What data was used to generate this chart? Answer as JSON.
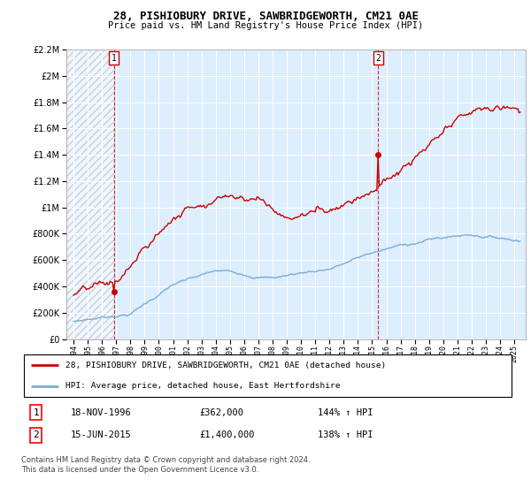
{
  "title": "28, PISHIOBURY DRIVE, SAWBRIDGEWORTH, CM21 0AE",
  "subtitle": "Price paid vs. HM Land Registry's House Price Index (HPI)",
  "sale1_label": "18-NOV-1996",
  "sale1_price": 362000,
  "sale1_hpi_pct": "144% ↑ HPI",
  "sale2_label": "15-JUN-2015",
  "sale2_price": 1400000,
  "sale2_hpi_pct": "138% ↑ HPI",
  "legend1": "28, PISHIOBURY DRIVE, SAWBRIDGEWORTH, CM21 0AE (detached house)",
  "legend2": "HPI: Average price, detached house, East Hertfordshire",
  "footnote": "Contains HM Land Registry data © Crown copyright and database right 2024.\nThis data is licensed under the Open Government Licence v3.0.",
  "house_color": "#cc0000",
  "hpi_color": "#7aadd6",
  "dashed_color": "#cc0000",
  "plot_bg": "#ddeeff",
  "ylim_max": 2200000,
  "ylim_min": 0,
  "sale1_t": 1996.833,
  "sale2_t": 2015.417
}
